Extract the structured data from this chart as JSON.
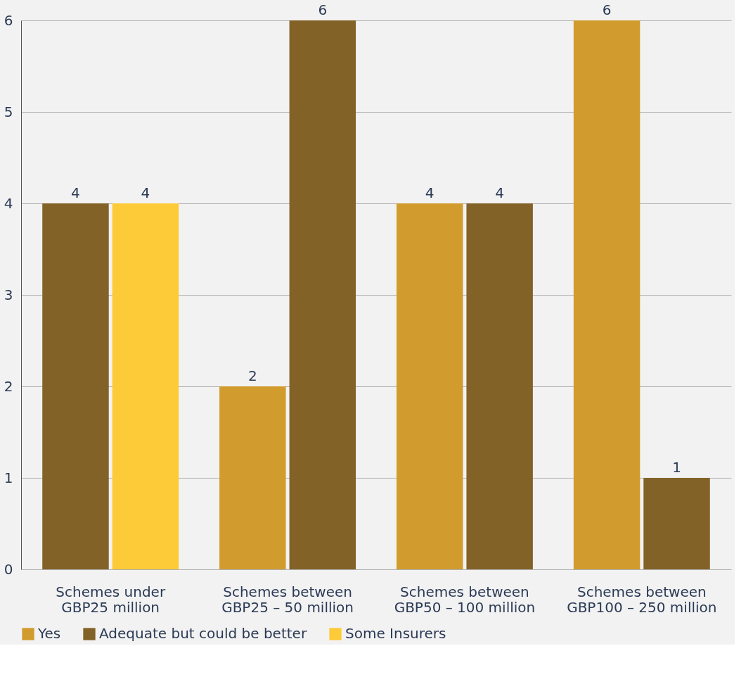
{
  "chart_data": {
    "type": "bar",
    "categories": [
      "Schemes under GBP25 million",
      "Schemes between GBP25 – 50 million",
      "Schemes between GBP50 – 100 million",
      "Schemes between GBP100 – 250 million"
    ],
    "series": [
      {
        "name": "Yes",
        "color": "#d19b2e",
        "values": [
          null,
          2,
          4,
          6
        ]
      },
      {
        "name": "Adequate but could be better",
        "color": "#836227",
        "values": [
          4,
          6,
          4,
          1
        ]
      },
      {
        "name": "Some Insurers",
        "color": "#fdcb38",
        "values": [
          4,
          null,
          null,
          null
        ]
      }
    ],
    "ylim": [
      0,
      6
    ],
    "yticks": [
      0,
      1,
      2,
      3,
      4,
      5,
      6
    ],
    "grid": "y",
    "legend": "bottom",
    "data_labels": true
  }
}
